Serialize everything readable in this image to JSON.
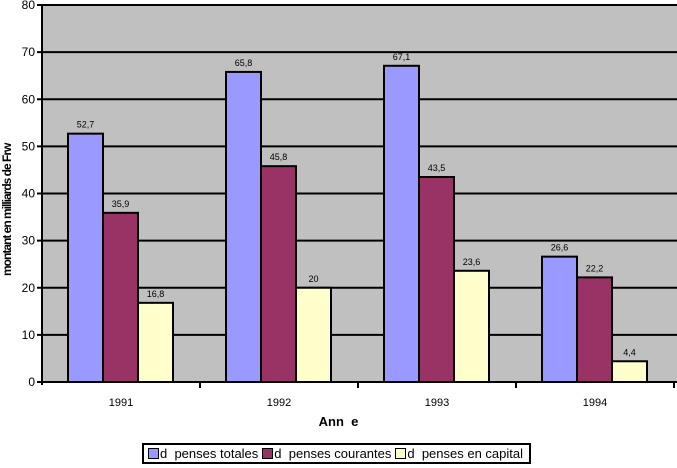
{
  "chart_data": {
    "type": "bar",
    "title": "",
    "xlabel": "Ann  e",
    "ylabel": "montant en milliards de Frw",
    "categories": [
      "1991",
      "1992",
      "1993",
      "1994"
    ],
    "ylim": [
      0,
      80
    ],
    "yticks": [
      0,
      10,
      20,
      30,
      40,
      50,
      60,
      70,
      80
    ],
    "grid": true,
    "legend_position": "bottom",
    "series": [
      {
        "name": "d  penses totales",
        "values": [
          52.7,
          65.8,
          67.1,
          26.6
        ],
        "labels": [
          "52,7",
          "65,8",
          "67,1",
          "26,6"
        ],
        "color": "#9999FF"
      },
      {
        "name": "d  penses courantes",
        "values": [
          35.9,
          45.8,
          43.5,
          22.2
        ],
        "labels": [
          "35,9",
          "45,8",
          "43,5",
          "22,2"
        ],
        "color": "#993366"
      },
      {
        "name": "d  penses en capital",
        "values": [
          16.8,
          20,
          23.6,
          4.4
        ],
        "labels": [
          "16,8",
          "20",
          "23,6",
          "4,4"
        ],
        "color": "#FFFFCC"
      }
    ],
    "plot_background": "#C0C0C0"
  }
}
